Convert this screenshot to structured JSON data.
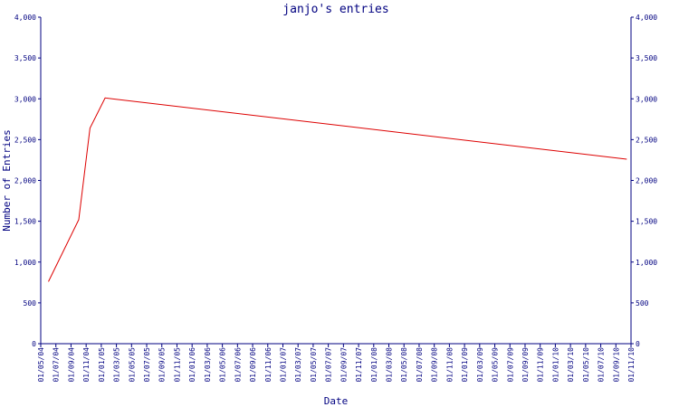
{
  "chart_data": {
    "type": "line",
    "title": "janjo's entries",
    "xlabel": "Date",
    "ylabel": "Number of Entries",
    "ylim": [
      0,
      4000
    ],
    "yticks": [
      0,
      500,
      1000,
      1500,
      2000,
      2500,
      3000,
      3500,
      4000
    ],
    "ytick_labels": [
      "0",
      "500",
      "1,000",
      "1,500",
      "2,000",
      "2,500",
      "3,000",
      "3,500",
      "4,000"
    ],
    "xlim": [
      "2004-05-01",
      "2010-11-01"
    ],
    "xtick_labels": [
      "01/05/04",
      "01/07/04",
      "01/09/04",
      "01/11/04",
      "01/01/05",
      "01/03/05",
      "01/05/05",
      "01/07/05",
      "01/09/05",
      "01/11/05",
      "01/01/06",
      "01/03/06",
      "01/05/06",
      "01/07/06",
      "01/09/06",
      "01/11/06",
      "01/01/07",
      "01/03/07",
      "01/05/07",
      "01/07/07",
      "01/09/07",
      "01/11/07",
      "01/01/08",
      "01/03/08",
      "01/05/08",
      "01/07/08",
      "01/09/08",
      "01/11/08",
      "01/01/09",
      "01/03/09",
      "01/05/09",
      "01/07/09",
      "01/09/09",
      "01/11/09",
      "01/01/10",
      "01/03/10",
      "01/05/10",
      "01/07/10",
      "01/09/10",
      "01/11/10"
    ],
    "grid": false,
    "colors": {
      "axis": "#000080",
      "line": "#dd0000",
      "text": "#000080"
    },
    "series": [
      {
        "x": [
          "2004-06-01",
          "2004-10-01",
          "2004-11-15",
          "2005-01-15",
          "2010-10-15"
        ],
        "values": [
          760,
          1520,
          2640,
          3010,
          2260
        ]
      }
    ]
  }
}
